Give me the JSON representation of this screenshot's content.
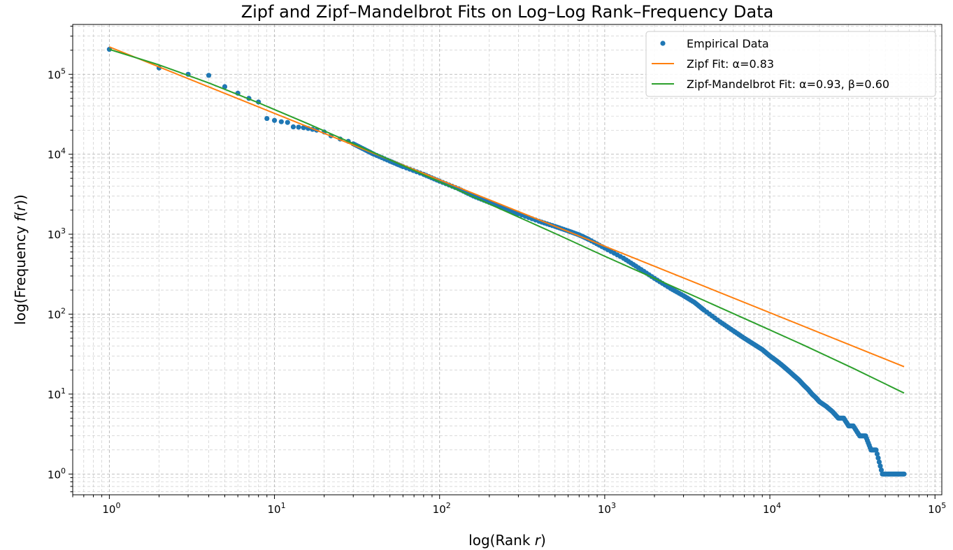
{
  "chart_data": {
    "type": "scatter",
    "title": "Zipf and Zipf–Mandelbrot Fits on Log–Log Rank–Frequency Data",
    "xlabel": {
      "pre": "log(Rank ",
      "var": "r",
      "post": ")"
    },
    "ylabel": {
      "pre": "log(Frequency ",
      "var": "f",
      "mid": "(",
      "var2": "r",
      "post": "))"
    },
    "xscale": "log",
    "yscale": "log",
    "xlim": [
      0.6,
      110000
    ],
    "ylim": [
      0.55,
      420000
    ],
    "grid": true,
    "legend_position": "top-right",
    "x_ticks": [
      {
        "value": 1,
        "base": "10",
        "exp": "0"
      },
      {
        "value": 10,
        "base": "10",
        "exp": "1"
      },
      {
        "value": 100,
        "base": "10",
        "exp": "2"
      },
      {
        "value": 1000,
        "base": "10",
        "exp": "3"
      },
      {
        "value": 10000,
        "base": "10",
        "exp": "4"
      },
      {
        "value": 100000,
        "base": "10",
        "exp": "5"
      }
    ],
    "y_ticks": [
      {
        "value": 1,
        "base": "10",
        "exp": "0"
      },
      {
        "value": 10,
        "base": "10",
        "exp": "1"
      },
      {
        "value": 100,
        "base": "10",
        "exp": "2"
      },
      {
        "value": 1000,
        "base": "10",
        "exp": "3"
      },
      {
        "value": 10000,
        "base": "10",
        "exp": "4"
      },
      {
        "value": 100000,
        "base": "10",
        "exp": "5"
      }
    ],
    "series": [
      {
        "name": "Empirical Data",
        "kind": "points",
        "color": "#1f77b4",
        "x": [
          1,
          2,
          3,
          4,
          5,
          6,
          7,
          8,
          9,
          10,
          11,
          12,
          13,
          14,
          15,
          16,
          17,
          18,
          20,
          22,
          25,
          28,
          30,
          35,
          40,
          50,
          60,
          80,
          100,
          130,
          160,
          200,
          250,
          300,
          400,
          500,
          600,
          700,
          800,
          1000,
          1300,
          1600,
          2000,
          2500,
          3000,
          3500,
          4000,
          5000,
          6000,
          7000,
          8000,
          9000,
          10000,
          11000,
          12000,
          13000,
          14000,
          15000,
          16000,
          17000,
          18000,
          19000,
          20000,
          22000,
          24000,
          26000,
          28000,
          30000,
          32000,
          35000,
          38000,
          41000,
          44000,
          48000,
          52000,
          56000,
          60000,
          65000
        ],
        "y": [
          205000,
          120000,
          100000,
          97000,
          70000,
          58000,
          50000,
          45000,
          28000,
          26500,
          25500,
          25000,
          22000,
          21800,
          21500,
          21000,
          20500,
          20000,
          19000,
          17000,
          15500,
          14500,
          13500,
          11500,
          10000,
          8200,
          7000,
          5600,
          4600,
          3700,
          3000,
          2500,
          2100,
          1800,
          1450,
          1250,
          1100,
          980,
          860,
          670,
          500,
          380,
          280,
          210,
          170,
          140,
          112,
          80,
          62,
          50,
          42,
          36,
          30,
          26,
          22.5,
          19.5,
          17,
          15,
          13,
          11.5,
          10,
          9,
          8,
          7,
          6,
          5,
          5,
          4,
          4,
          3,
          3,
          2,
          2,
          1,
          1,
          1,
          1,
          1
        ]
      },
      {
        "name": "Zipf Fit: α=0.83",
        "kind": "line",
        "color": "#ff7f0e",
        "x": [
          1,
          65000
        ],
        "y": [
          220000,
          22
        ]
      },
      {
        "name": "Zipf-Mandelbrot Fit: α=0.93, β=0.60",
        "kind": "line",
        "color": "#2ca02c",
        "x": [
          1,
          2,
          4,
          8,
          16,
          32,
          64,
          128,
          256,
          512,
          1000,
          2000,
          4000,
          8000,
          16000,
          32000,
          65000
        ],
        "y": [
          205000,
          131000,
          78000,
          44000,
          24000,
          12800,
          6800,
          3600,
          1900,
          1000,
          530,
          280,
          148,
          78,
          41,
          21,
          10.3
        ]
      }
    ]
  }
}
